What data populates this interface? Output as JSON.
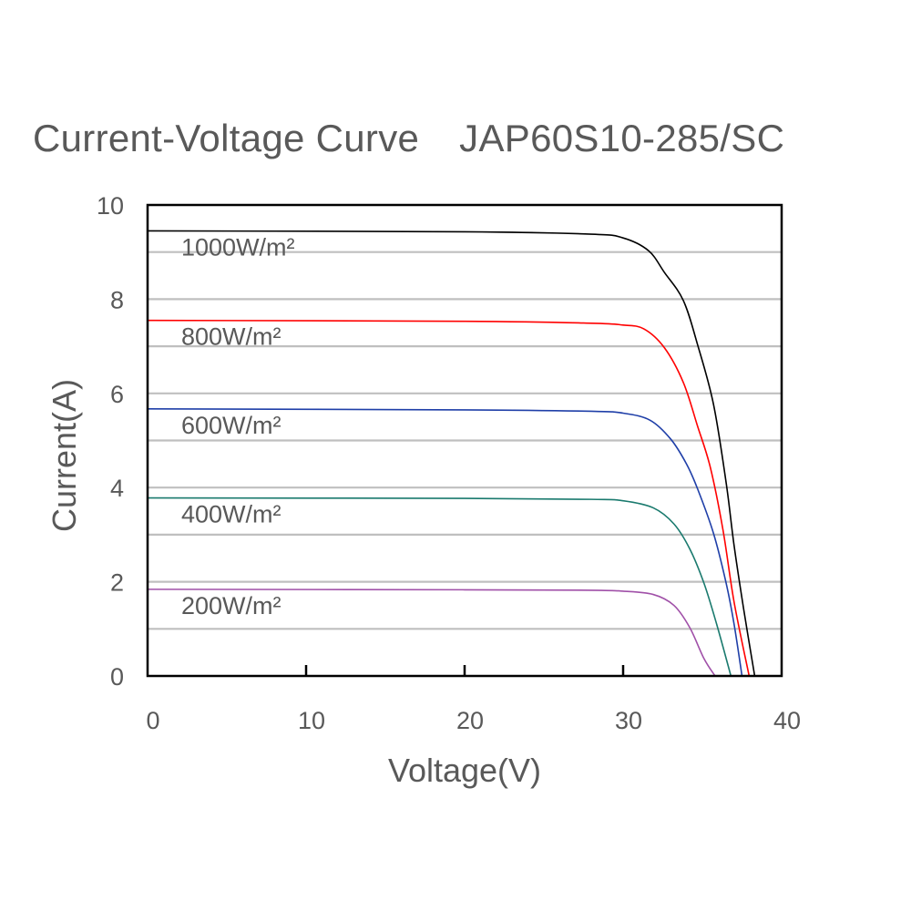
{
  "chart_data": {
    "type": "line",
    "title": "Current-Voltage Curve",
    "subtitle": "JAP60S10-285/SC",
    "xlabel": "Voltage(V)",
    "ylabel": "Current(A)",
    "xlim": [
      0,
      40
    ],
    "ylim": [
      0,
      10
    ],
    "xticks": [
      "0",
      "10",
      "20",
      "30",
      "40"
    ],
    "yticks": [
      "0",
      "2",
      "4",
      "6",
      "8",
      "10"
    ],
    "grid": "horizontal, every 1 A",
    "legend": "inline labels under each curve",
    "series": [
      {
        "name": "1000W/m²",
        "color": "#000000",
        "points": [
          [
            0,
            9.45
          ],
          [
            20,
            9.43
          ],
          [
            28,
            9.38
          ],
          [
            30,
            9.3
          ],
          [
            31.6,
            9.03
          ],
          [
            32.6,
            8.57
          ],
          [
            33.8,
            7.97
          ],
          [
            34.7,
            7.03
          ],
          [
            35.7,
            5.77
          ],
          [
            36.5,
            4.1
          ],
          [
            37.0,
            2.77
          ],
          [
            37.6,
            1.43
          ],
          [
            38.3,
            0
          ]
        ]
      },
      {
        "name": "800W/m²",
        "color": "#ff0000",
        "points": [
          [
            0,
            7.55
          ],
          [
            20,
            7.53
          ],
          [
            28,
            7.49
          ],
          [
            30,
            7.45
          ],
          [
            31.3,
            7.37
          ],
          [
            32.6,
            6.97
          ],
          [
            33.8,
            6.23
          ],
          [
            34.7,
            5.3
          ],
          [
            35.5,
            4.43
          ],
          [
            36.3,
            3.1
          ],
          [
            37.0,
            1.57
          ],
          [
            37.95,
            0
          ]
        ]
      },
      {
        "name": "600W/m²",
        "color": "#1f3fa8",
        "points": [
          [
            0,
            5.67
          ],
          [
            20,
            5.65
          ],
          [
            28,
            5.62
          ],
          [
            30,
            5.58
          ],
          [
            31.7,
            5.43
          ],
          [
            33.0,
            5.03
          ],
          [
            34.0,
            4.5
          ],
          [
            34.7,
            3.97
          ],
          [
            35.7,
            3.03
          ],
          [
            36.5,
            1.97
          ],
          [
            37.0,
            1.1
          ],
          [
            37.5,
            0
          ]
        ]
      },
      {
        "name": "400W/m²",
        "color": "#1a7a6e",
        "points": [
          [
            0,
            3.78
          ],
          [
            20,
            3.77
          ],
          [
            28,
            3.75
          ],
          [
            30,
            3.72
          ],
          [
            31.9,
            3.57
          ],
          [
            33.2,
            3.23
          ],
          [
            34.2,
            2.7
          ],
          [
            35.1,
            1.97
          ],
          [
            35.9,
            1.1
          ],
          [
            36.8,
            0
          ]
        ]
      },
      {
        "name": "200W/m²",
        "color": "#a050a8",
        "points": [
          [
            0,
            1.84
          ],
          [
            20,
            1.83
          ],
          [
            28,
            1.82
          ],
          [
            30,
            1.8
          ],
          [
            31.9,
            1.73
          ],
          [
            33.2,
            1.5
          ],
          [
            34.2,
            1.03
          ],
          [
            35.1,
            0.37
          ],
          [
            35.8,
            0
          ]
        ]
      }
    ]
  }
}
